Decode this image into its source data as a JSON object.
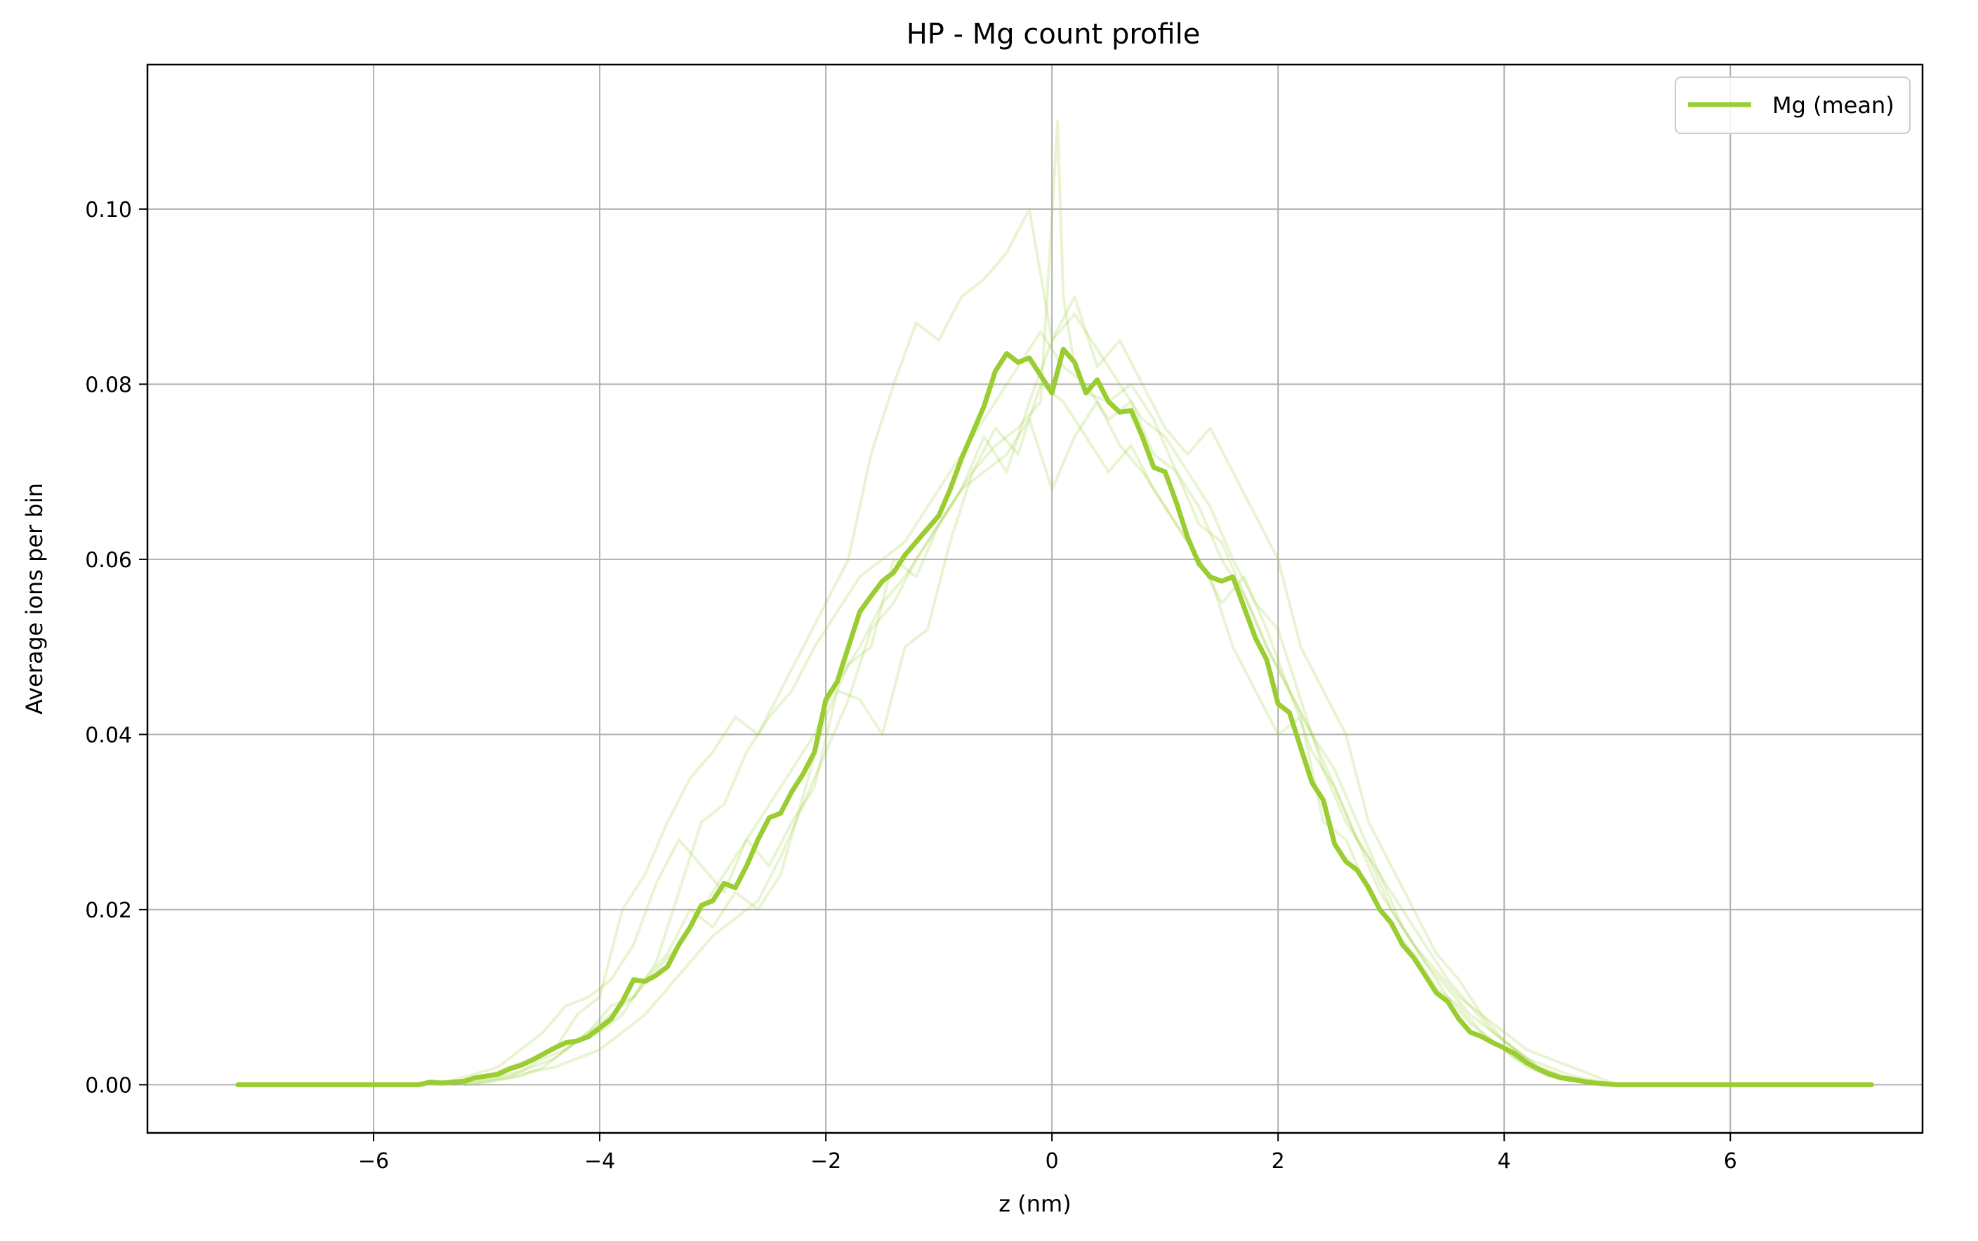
{
  "chart_data": {
    "type": "line",
    "title": "HP - Mg count profile",
    "xlabel": "z (nm)",
    "ylabel": "Average ions per bin",
    "xlim": [
      -8.0,
      7.7
    ],
    "ylim": [
      -0.0055,
      0.1165
    ],
    "xticks": [
      -6,
      -4,
      -2,
      0,
      2,
      4,
      6
    ],
    "xtick_labels": [
      "−6",
      "−4",
      "−2",
      "0",
      "2",
      "4",
      "6"
    ],
    "yticks": [
      0.0,
      0.02,
      0.04,
      0.06,
      0.08,
      0.1
    ],
    "ytick_labels": [
      "0.00",
      "0.02",
      "0.04",
      "0.06",
      "0.08",
      "0.10"
    ],
    "grid": true,
    "legend_position": "top-right",
    "colors": {
      "mean": "#9acd32",
      "faint": "#9acd32"
    },
    "series": [
      {
        "name": "Mg (mean)",
        "x": [
          -7.2,
          -6.0,
          -5.6,
          -5.5,
          -5.4,
          -5.3,
          -5.2,
          -5.1,
          -5.0,
          -4.9,
          -4.8,
          -4.7,
          -4.6,
          -4.5,
          -4.4,
          -4.3,
          -4.2,
          -4.1,
          -4.0,
          -3.9,
          -3.8,
          -3.7,
          -3.6,
          -3.5,
          -3.4,
          -3.3,
          -3.2,
          -3.1,
          -3.0,
          -2.9,
          -2.8,
          -2.7,
          -2.6,
          -2.5,
          -2.4,
          -2.3,
          -2.2,
          -2.1,
          -2.0,
          -1.9,
          -1.8,
          -1.7,
          -1.6,
          -1.5,
          -1.4,
          -1.3,
          -1.2,
          -1.1,
          -1.0,
          -0.9,
          -0.8,
          -0.7,
          -0.6,
          -0.5,
          -0.4,
          -0.3,
          -0.2,
          -0.1,
          0.0,
          0.1,
          0.2,
          0.3,
          0.4,
          0.5,
          0.6,
          0.7,
          0.8,
          0.9,
          1.0,
          1.1,
          1.2,
          1.3,
          1.4,
          1.5,
          1.6,
          1.7,
          1.8,
          1.9,
          2.0,
          2.1,
          2.2,
          2.3,
          2.4,
          2.5,
          2.6,
          2.7,
          2.8,
          2.9,
          3.0,
          3.1,
          3.2,
          3.3,
          3.4,
          3.5,
          3.6,
          3.7,
          3.8,
          3.9,
          4.0,
          4.1,
          4.2,
          4.3,
          4.4,
          4.5,
          4.6,
          4.7,
          4.8,
          4.9,
          5.0,
          5.1,
          5.5,
          6.0,
          7.25
        ],
        "y": [
          0.0,
          0.0,
          0.0,
          0.0003,
          0.0002,
          0.0003,
          0.0004,
          0.0008,
          0.001,
          0.0012,
          0.0018,
          0.0022,
          0.0028,
          0.0035,
          0.0042,
          0.0048,
          0.005,
          0.0055,
          0.0065,
          0.0075,
          0.0095,
          0.012,
          0.0118,
          0.0125,
          0.0135,
          0.016,
          0.018,
          0.0205,
          0.021,
          0.023,
          0.0225,
          0.025,
          0.028,
          0.0305,
          0.031,
          0.0335,
          0.0355,
          0.038,
          0.044,
          0.046,
          0.05,
          0.054,
          0.0558,
          0.0575,
          0.0585,
          0.0605,
          0.062,
          0.0635,
          0.065,
          0.068,
          0.0715,
          0.0745,
          0.0775,
          0.0815,
          0.0835,
          0.0825,
          0.083,
          0.081,
          0.079,
          0.084,
          0.0825,
          0.079,
          0.0805,
          0.078,
          0.0768,
          0.077,
          0.074,
          0.0705,
          0.07,
          0.0665,
          0.0625,
          0.0595,
          0.058,
          0.0575,
          0.058,
          0.0545,
          0.051,
          0.0485,
          0.0435,
          0.0425,
          0.0385,
          0.0345,
          0.0325,
          0.0275,
          0.0255,
          0.0245,
          0.0225,
          0.02,
          0.0185,
          0.016,
          0.0145,
          0.0125,
          0.0105,
          0.0095,
          0.0075,
          0.006,
          0.0055,
          0.0048,
          0.0042,
          0.0035,
          0.0025,
          0.0018,
          0.0012,
          0.0008,
          0.0006,
          0.0004,
          0.0002,
          0.0001,
          0.0,
          0.0,
          0.0,
          0.0,
          0.0
        ]
      },
      {
        "x": [
          -5.4,
          -5.0,
          -4.8,
          -4.6,
          -4.4,
          -4.2,
          -4.0,
          -3.8,
          -3.6,
          -3.4,
          -3.2,
          -3.0,
          -2.8,
          -2.6,
          -2.4,
          -2.2,
          -2.0,
          -1.8,
          -1.6,
          -1.4,
          -1.2,
          -1.0,
          -0.8,
          -0.6,
          -0.4,
          -0.2,
          0.0,
          0.2,
          0.4,
          0.6,
          0.8,
          1.0,
          1.2,
          1.4,
          1.6,
          1.8,
          2.0,
          2.2,
          2.4,
          2.6,
          2.8,
          3.0,
          3.2,
          3.4,
          3.6,
          3.8,
          4.0,
          4.2,
          4.4,
          4.6,
          4.8,
          5.0
        ],
        "y": [
          0.0,
          0.001,
          0.002,
          0.003,
          0.004,
          0.008,
          0.01,
          0.02,
          0.024,
          0.03,
          0.035,
          0.038,
          0.042,
          0.04,
          0.045,
          0.05,
          0.055,
          0.06,
          0.072,
          0.08,
          0.087,
          0.085,
          0.09,
          0.092,
          0.095,
          0.1,
          0.085,
          0.09,
          0.082,
          0.085,
          0.08,
          0.075,
          0.072,
          0.075,
          0.07,
          0.065,
          0.06,
          0.05,
          0.045,
          0.04,
          0.03,
          0.025,
          0.02,
          0.015,
          0.012,
          0.008,
          0.006,
          0.004,
          0.003,
          0.002,
          0.001,
          0.0
        ]
      },
      {
        "x": [
          -5.3,
          -4.9,
          -4.7,
          -4.5,
          -4.3,
          -4.1,
          -3.9,
          -3.7,
          -3.5,
          -3.3,
          -3.1,
          -2.9,
          -2.7,
          -2.5,
          -2.3,
          -2.1,
          -1.9,
          -1.7,
          -1.5,
          -1.3,
          -1.1,
          -0.9,
          -0.7,
          -0.5,
          -0.3,
          -0.1,
          0.1,
          0.3,
          0.5,
          0.7,
          0.9,
          1.1,
          1.3,
          1.5,
          1.7,
          1.9,
          2.1,
          2.3,
          2.5,
          2.7,
          2.9,
          3.1,
          3.3,
          3.5,
          3.7,
          3.9,
          4.1,
          4.3,
          4.5,
          4.7,
          4.9
        ],
        "y": [
          0.0005,
          0.002,
          0.004,
          0.006,
          0.009,
          0.01,
          0.012,
          0.016,
          0.023,
          0.028,
          0.025,
          0.022,
          0.028,
          0.025,
          0.03,
          0.034,
          0.045,
          0.044,
          0.04,
          0.05,
          0.052,
          0.062,
          0.07,
          0.075,
          0.072,
          0.08,
          0.078,
          0.074,
          0.07,
          0.073,
          0.068,
          0.064,
          0.06,
          0.055,
          0.058,
          0.052,
          0.045,
          0.04,
          0.036,
          0.03,
          0.024,
          0.02,
          0.016,
          0.012,
          0.009,
          0.006,
          0.004,
          0.002,
          0.001,
          0.0005,
          0.0
        ]
      },
      {
        "x": [
          -5.2,
          -4.8,
          -4.6,
          -4.4,
          -4.2,
          -4.0,
          -3.8,
          -3.6,
          -3.4,
          -3.2,
          -3.0,
          -2.8,
          -2.6,
          -2.4,
          -2.2,
          -2.0,
          -1.8,
          -1.6,
          -1.4,
          -1.2,
          -1.0,
          -0.8,
          -0.6,
          -0.4,
          -0.2,
          0.0,
          0.2,
          0.4,
          0.6,
          0.8,
          1.0,
          1.2,
          1.4,
          1.6,
          1.8,
          2.0,
          2.2,
          2.4,
          2.6,
          2.8,
          3.0,
          3.2,
          3.4,
          3.6,
          3.8,
          4.0,
          4.2,
          4.4,
          4.6,
          4.8,
          5.0
        ],
        "y": [
          0.0,
          0.001,
          0.002,
          0.003,
          0.005,
          0.006,
          0.008,
          0.012,
          0.015,
          0.02,
          0.018,
          0.022,
          0.02,
          0.024,
          0.033,
          0.042,
          0.048,
          0.05,
          0.06,
          0.058,
          0.064,
          0.068,
          0.07,
          0.072,
          0.076,
          0.068,
          0.074,
          0.078,
          0.073,
          0.07,
          0.066,
          0.062,
          0.058,
          0.05,
          0.045,
          0.04,
          0.042,
          0.03,
          0.028,
          0.022,
          0.018,
          0.015,
          0.011,
          0.009,
          0.006,
          0.004,
          0.002,
          0.001,
          0.0005,
          0.0002,
          0.0
        ]
      },
      {
        "x": [
          -5.3,
          -4.9,
          -4.7,
          -4.5,
          -4.3,
          -4.1,
          -3.9,
          -3.7,
          -3.5,
          -3.3,
          -3.1,
          -2.9,
          -2.7,
          -2.5,
          -2.3,
          -2.1,
          -1.9,
          -1.7,
          -1.5,
          -1.3,
          -1.1,
          -0.9,
          -0.7,
          -0.5,
          -0.3,
          -0.1,
          0.1,
          0.3,
          0.5,
          0.7,
          0.9,
          1.1,
          1.3,
          1.5,
          1.7,
          1.9,
          2.1,
          2.3,
          2.5,
          2.7,
          2.9,
          3.1,
          3.3,
          3.5,
          3.7,
          3.9,
          4.1,
          4.3,
          4.5,
          4.7,
          4.9
        ],
        "y": [
          0.0,
          0.001,
          0.0015,
          0.003,
          0.004,
          0.006,
          0.009,
          0.01,
          0.014,
          0.022,
          0.03,
          0.032,
          0.038,
          0.042,
          0.045,
          0.05,
          0.054,
          0.058,
          0.06,
          0.062,
          0.066,
          0.07,
          0.074,
          0.078,
          0.082,
          0.086,
          0.082,
          0.08,
          0.076,
          0.078,
          0.072,
          0.07,
          0.064,
          0.062,
          0.056,
          0.05,
          0.045,
          0.038,
          0.034,
          0.028,
          0.024,
          0.018,
          0.014,
          0.01,
          0.007,
          0.005,
          0.003,
          0.002,
          0.001,
          0.0005,
          0.0
        ]
      },
      {
        "x": [
          -5.2,
          -4.8,
          -4.6,
          -4.4,
          -4.2,
          -4.0,
          -3.8,
          -3.6,
          -3.4,
          -3.2,
          -3.0,
          -2.8,
          -2.6,
          -2.4,
          -2.2,
          -2.0,
          -1.8,
          -1.6,
          -1.4,
          -1.2,
          -1.0,
          -0.8,
          -0.6,
          -0.4,
          -0.2,
          0.0,
          0.2,
          0.4,
          0.6,
          0.8,
          1.0,
          1.2,
          1.4,
          1.6,
          1.8,
          2.0,
          2.2,
          2.4,
          2.6,
          2.8,
          3.0,
          3.2,
          3.4,
          3.6,
          3.8,
          4.0,
          4.2,
          4.4,
          4.6,
          4.8,
          5.0
        ],
        "y": [
          0.0,
          0.0008,
          0.0015,
          0.002,
          0.003,
          0.004,
          0.006,
          0.008,
          0.011,
          0.014,
          0.017,
          0.019,
          0.021,
          0.026,
          0.032,
          0.038,
          0.044,
          0.052,
          0.055,
          0.06,
          0.064,
          0.068,
          0.074,
          0.07,
          0.078,
          0.085,
          0.088,
          0.084,
          0.08,
          0.076,
          0.074,
          0.07,
          0.066,
          0.06,
          0.055,
          0.052,
          0.044,
          0.036,
          0.03,
          0.026,
          0.02,
          0.016,
          0.013,
          0.01,
          0.008,
          0.005,
          0.003,
          0.002,
          0.001,
          0.0005,
          0.0
        ]
      },
      {
        "x": [
          -5.1,
          -4.7,
          -4.5,
          -4.3,
          -4.1,
          -3.9,
          -3.7,
          -3.5,
          -3.3,
          -3.1,
          -2.9,
          -2.7,
          -2.5,
          -2.3,
          -2.1,
          -1.9,
          -1.7,
          -1.5,
          -1.3,
          -1.1,
          -0.9,
          -0.7,
          -0.5,
          -0.3,
          -0.1,
          0.05,
          0.1,
          0.2,
          0.3,
          0.5,
          0.7,
          0.9,
          1.1,
          1.3,
          1.5,
          1.7,
          1.9,
          2.1,
          2.3,
          2.5,
          2.7,
          2.9,
          3.1,
          3.3,
          3.5,
          3.7,
          3.9,
          4.1,
          4.3,
          4.5,
          4.7,
          4.9
        ],
        "y": [
          0.0,
          0.001,
          0.002,
          0.004,
          0.006,
          0.008,
          0.01,
          0.013,
          0.016,
          0.02,
          0.024,
          0.028,
          0.032,
          0.036,
          0.04,
          0.046,
          0.05,
          0.055,
          0.058,
          0.062,
          0.066,
          0.07,
          0.073,
          0.075,
          0.078,
          0.11,
          0.09,
          0.082,
          0.079,
          0.078,
          0.08,
          0.076,
          0.07,
          0.066,
          0.06,
          0.056,
          0.05,
          0.045,
          0.04,
          0.034,
          0.028,
          0.022,
          0.018,
          0.014,
          0.011,
          0.008,
          0.006,
          0.004,
          0.002,
          0.001,
          0.0005,
          0.0
        ]
      }
    ]
  }
}
